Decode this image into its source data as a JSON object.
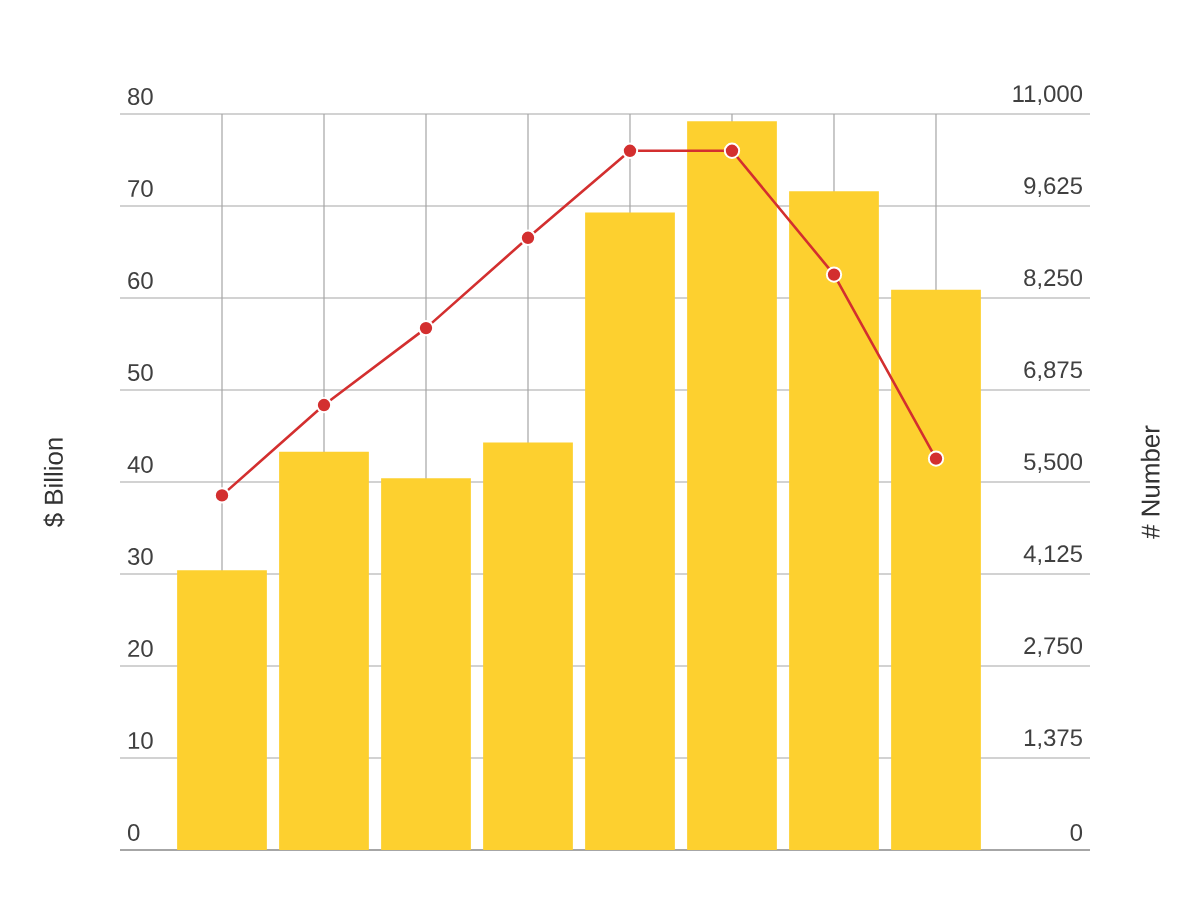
{
  "chart_data": {
    "type": "bar",
    "categories": [
      null,
      null,
      null,
      null,
      null,
      null,
      null,
      null
    ],
    "series": [
      {
        "color": "#fdd02f",
        "values": [
          30.4,
          43.3,
          40.4,
          44.3,
          69.3,
          79.2,
          71.6,
          60.9
        ]
      },
      {
        "type": "line",
        "axis": "y2",
        "color": "#d32f2f",
        "values": [
          5300,
          6650,
          7800,
          9150,
          10450,
          10450,
          8600,
          5850
        ]
      }
    ],
    "ylabel": "$ Billion",
    "y2label": "# Number",
    "ylim": [
      0,
      80
    ],
    "yticks": [
      0,
      10,
      20,
      30,
      40,
      50,
      60,
      70,
      80
    ],
    "y2lim": [
      0,
      11000
    ],
    "y2ticks": [
      0,
      {
        "value": 1375,
        "label": "1,375"
      },
      {
        "value": 2750,
        "label": "2,750"
      },
      {
        "value": 4125,
        "label": "4,125"
      },
      {
        "value": 5500,
        "label": "5,500"
      },
      {
        "value": 6875,
        "label": "6,875"
      },
      {
        "value": 8250,
        "label": "8,250"
      },
      {
        "value": 9625,
        "label": "9,625"
      },
      {
        "value": 11000,
        "label": "11,000"
      }
    ],
    "grid": true,
    "marker": "circle",
    "line_style": "solid"
  }
}
